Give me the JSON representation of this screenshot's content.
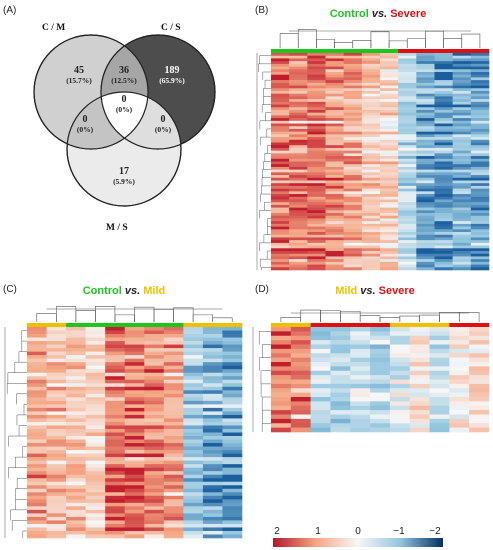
{
  "panels": {
    "a": {
      "letter": "(A)",
      "sets": [
        {
          "label": "C / M",
          "color": "#d0d0d0"
        },
        {
          "label": "C / S",
          "color": "#4d4d4d"
        },
        {
          "label": "M / S",
          "color": "#ebebeb"
        }
      ],
      "regions": [
        {
          "id": "cm-only",
          "count": "45",
          "percent": "(15.7%)",
          "text_color": "#222222"
        },
        {
          "id": "cm-cs",
          "count": "36",
          "percent": "(12.5%)",
          "text_color": "#222222"
        },
        {
          "id": "cs-only",
          "count": "189",
          "percent": "(65.9%)",
          "text_color": "#ffffff"
        },
        {
          "id": "cm-ms",
          "count": "0",
          "percent": "(0%)",
          "text_color": "#222222"
        },
        {
          "id": "center",
          "count": "0",
          "percent": "(0%)",
          "text_color": "#222222"
        },
        {
          "id": "cs-ms",
          "count": "0",
          "percent": "(0%)",
          "text_color": "#222222"
        },
        {
          "id": "ms-only",
          "count": "17",
          "percent": "(5.9%)",
          "text_color": "#222222"
        }
      ]
    },
    "b": {
      "letter": "(B)",
      "title_left": "Control",
      "title_vs": "vs.",
      "title_right": "Severe",
      "left_color": "#1ec51e",
      "right_color": "#dd1111"
    },
    "c": {
      "letter": "(C)",
      "title_left": "Control",
      "title_vs": "vs.",
      "title_right": "Mild",
      "left_color": "#1ec51e",
      "right_color": "#f0c000"
    },
    "d": {
      "letter": "(D)",
      "title_left": "Mild",
      "title_vs": "vs.",
      "title_right": "Severe",
      "left_color": "#f0c000",
      "right_color": "#dd1111"
    }
  },
  "legend": {
    "ticks": [
      "2",
      "1",
      "0",
      "−1",
      "−2"
    ],
    "colors": [
      "#b2182b",
      "#f4a582",
      "#f7f7f7",
      "#92c5de",
      "#053061"
    ]
  }
}
